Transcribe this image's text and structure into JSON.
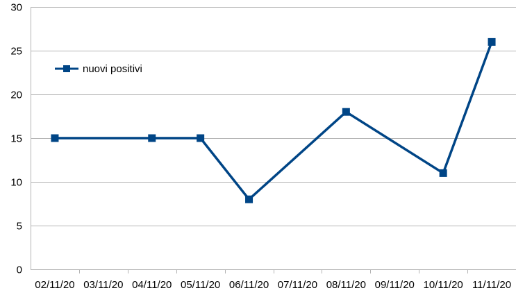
{
  "chart_data": {
    "type": "line",
    "title": "",
    "xlabel": "",
    "ylabel": "",
    "categories": [
      "02/11/20",
      "03/11/20",
      "04/11/20",
      "05/11/20",
      "06/11/20",
      "07/11/20",
      "08/11/20",
      "09/11/20",
      "10/11/20",
      "11/11/20"
    ],
    "ylim": [
      0,
      30
    ],
    "yticks": [
      0,
      5,
      10,
      15,
      20,
      25,
      30
    ],
    "grid": true,
    "legend_position": "top-left",
    "series": [
      {
        "name": "nuovi positivi",
        "color": "#004586",
        "marker": "square",
        "points": [
          {
            "x": "02/11/20",
            "y": 15
          },
          {
            "x": "04/11/20",
            "y": 15
          },
          {
            "x": "05/11/20",
            "y": 15
          },
          {
            "x": "06/11/20",
            "y": 8
          },
          {
            "x": "08/11/20",
            "y": 18
          },
          {
            "x": "10/11/20",
            "y": 11
          },
          {
            "x": "11/11/20",
            "y": 26
          }
        ]
      }
    ]
  }
}
